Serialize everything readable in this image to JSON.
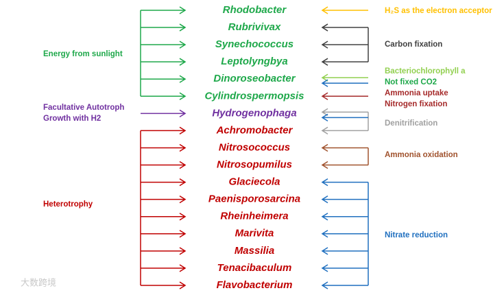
{
  "organisms": [
    "Rhodobacter",
    "Rubrivivax",
    "Synechococcus",
    "Leptolyngbya",
    "Dinoroseobacter",
    "Cylindrospermopsis",
    "Hydrogenophaga",
    "Achromobacter",
    "Nitrosococcus",
    "Nitrosopumilus",
    "Glaciecola",
    "Paenisporosarcina",
    "Rheinheimera",
    "Marivita",
    "Massilia",
    "Tenacibaculum",
    "Flavobacterium"
  ],
  "left_labels": {
    "sunlight": "Energy from sunlight",
    "facultative_1": "Facultative Autotroph",
    "facultative_2": "Growth with H2",
    "heterotrophy": "Heterotrophy"
  },
  "right_labels": {
    "h2s": "H₂S as the electron acceptor",
    "carbon": "Carbon fixation",
    "bchl": "Bacteriochlorophyll a",
    "not_fixed": "Not  fixed CO2",
    "ammonia_uptake": "Ammonia uptake",
    "nitrogen": "Nitrogen fixation",
    "denitrification": "Denitrification",
    "ammonia_oxidation": "Ammonia oxidation",
    "nitrate": "Nitrate reduction"
  },
  "watermark": "大数跨境"
}
